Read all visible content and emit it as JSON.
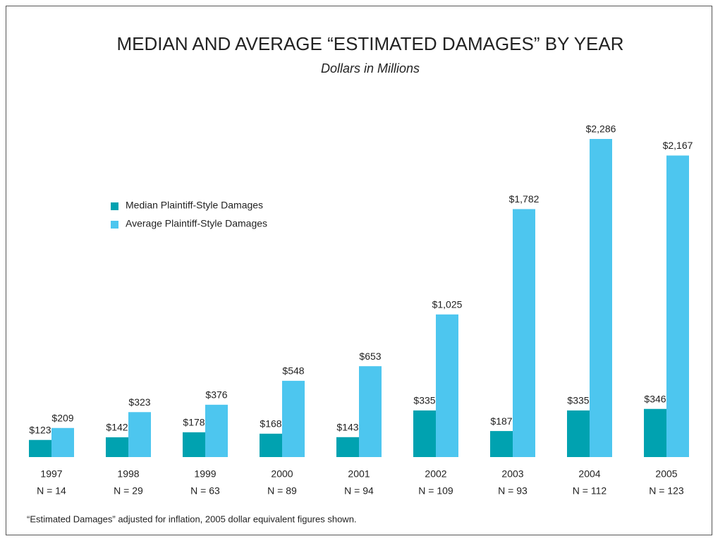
{
  "chart_data": {
    "type": "bar",
    "title": "MEDIAN AND AVERAGE “ESTIMATED DAMAGES” BY YEAR",
    "subtitle": "Dollars in Millions",
    "categories": [
      "1997",
      "1998",
      "1999",
      "2000",
      "2001",
      "2002",
      "2003",
      "2004",
      "2005"
    ],
    "sample_sizes": [
      "N = 14",
      "N = 29",
      "N = 63",
      "N = 89",
      "N = 94",
      "N = 109",
      "N = 93",
      "N = 112",
      "N = 123"
    ],
    "series": [
      {
        "name": "Median Plaintiff-Style Damages",
        "color": "#00a2b0",
        "values": [
          123,
          142,
          178,
          168,
          143,
          335,
          187,
          335,
          346
        ],
        "value_labels": [
          "$123",
          "$142",
          "$178",
          "$168",
          "$143",
          "$335",
          "$187",
          "$335",
          "$346"
        ]
      },
      {
        "name": "Average Plaintiff-Style Damages",
        "color": "#4dc6ef",
        "values": [
          209,
          323,
          376,
          548,
          653,
          1025,
          1782,
          2286,
          2167
        ],
        "value_labels": [
          "$209",
          "$323",
          "$376",
          "$548",
          "$653",
          "$1,025",
          "$1,782",
          "$2,286",
          "$2,167"
        ]
      }
    ],
    "legend": "upper left",
    "footnote": "“Estimated Damages” adjusted for inflation, 2005 dollar equivalent figures shown."
  }
}
